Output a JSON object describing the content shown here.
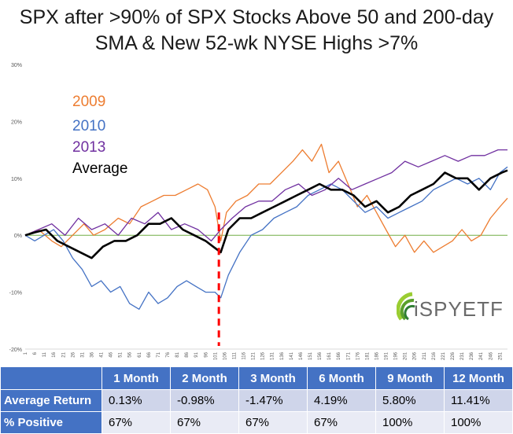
{
  "title": "SPX after >90% of SPX Stocks Above 50 and 200-day SMA & New 52-wk NYSE Highs >7%",
  "legend": [
    {
      "label": "2009",
      "color": "#ed7d31"
    },
    {
      "label": "2010",
      "color": "#4472c4"
    },
    {
      "label": "2013",
      "color": "#7030a0"
    },
    {
      "label": "Average",
      "color": "#000000"
    }
  ],
  "logo": {
    "text": "iSPYETF"
  },
  "chart_data": {
    "type": "line",
    "ylim": [
      -20,
      30
    ],
    "y_ticks": [
      -20,
      -10,
      0,
      10,
      20,
      30
    ],
    "y_tick_labels": [
      "-20%",
      "-10%",
      "0%",
      "10%",
      "20%",
      "30%"
    ],
    "x_range": [
      1,
      255
    ],
    "x_tick_labels": [
      "1",
      "6",
      "11",
      "16",
      "21",
      "26",
      "31",
      "36",
      "41",
      "46",
      "51",
      "56",
      "61",
      "66",
      "71",
      "76",
      "81",
      "86",
      "91",
      "96",
      "101",
      "106",
      "111",
      "116",
      "121",
      "126",
      "131",
      "136",
      "141",
      "146",
      "151",
      "156",
      "161",
      "166",
      "171",
      "176",
      "181",
      "186",
      "191",
      "196",
      "201",
      "206",
      "211",
      "216",
      "221",
      "226",
      "231",
      "236",
      "241",
      "246",
      "251"
    ],
    "signal_day": 103,
    "zero_line_color": "#70ad47",
    "signal_line_color": "#ff0000",
    "series": [
      {
        "name": "2009",
        "color": "#ed7d31",
        "width": 1.3,
        "x": [
          1,
          8,
          15,
          20,
          26,
          32,
          37,
          43,
          50,
          56,
          62,
          68,
          74,
          80,
          86,
          92,
          97,
          101,
          104,
          107,
          112,
          118,
          124,
          130,
          136,
          142,
          147,
          152,
          157,
          161,
          166,
          171,
          176,
          181,
          186,
          191,
          196,
          201,
          206,
          211,
          216,
          221,
          226,
          231,
          236,
          241,
          246,
          251,
          255
        ],
        "y": [
          0,
          1,
          -1,
          -2,
          0,
          2,
          0,
          1,
          3,
          2,
          5,
          6,
          7,
          7,
          8,
          9,
          8,
          5,
          -1,
          4,
          6,
          7,
          9,
          9,
          11,
          13,
          15,
          13,
          16,
          11,
          13,
          9,
          5,
          7,
          4,
          1,
          -2,
          0,
          -3,
          -1,
          -3,
          -2,
          -1,
          1,
          -1,
          0,
          3,
          5,
          6.5
        ]
      },
      {
        "name": "2010",
        "color": "#4472c4",
        "width": 1.3,
        "x": [
          1,
          6,
          11,
          16,
          21,
          26,
          31,
          36,
          41,
          46,
          51,
          56,
          61,
          66,
          71,
          76,
          81,
          86,
          91,
          96,
          101,
          104,
          108,
          114,
          120,
          126,
          132,
          138,
          144,
          150,
          156,
          162,
          168,
          174,
          180,
          186,
          192,
          198,
          204,
          210,
          216,
          222,
          228,
          234,
          240,
          246,
          251,
          255
        ],
        "y": [
          0,
          -1,
          0,
          1,
          -1,
          -4,
          -6,
          -9,
          -8,
          -10,
          -9,
          -12,
          -13,
          -10,
          -12,
          -11,
          -9,
          -8,
          -9,
          -10,
          -10,
          -11,
          -7,
          -3,
          0,
          1,
          3,
          4,
          5,
          7,
          8,
          9,
          8,
          6,
          4,
          5,
          3,
          4,
          5,
          6,
          8,
          9,
          10,
          9,
          10,
          8,
          11,
          12
        ]
      },
      {
        "name": "2013",
        "color": "#7030a0",
        "width": 1.3,
        "x": [
          1,
          8,
          15,
          22,
          29,
          36,
          43,
          50,
          57,
          64,
          71,
          78,
          85,
          92,
          99,
          104,
          110,
          117,
          124,
          131,
          138,
          145,
          152,
          159,
          166,
          173,
          180,
          187,
          194,
          201,
          208,
          215,
          222,
          229,
          236,
          243,
          250,
          255
        ],
        "y": [
          0,
          1,
          2,
          0,
          3,
          1,
          2,
          0,
          3,
          2,
          4,
          1,
          2,
          1,
          -1,
          1,
          3,
          5,
          6,
          6,
          8,
          9,
          7,
          8,
          10,
          8,
          9,
          10,
          11,
          13,
          12,
          13,
          14,
          13,
          14,
          14,
          15,
          15
        ]
      },
      {
        "name": "Average",
        "color": "#000000",
        "width": 2.6,
        "x": [
          1,
          6,
          12,
          18,
          24,
          30,
          36,
          42,
          48,
          54,
          60,
          66,
          72,
          78,
          84,
          90,
          96,
          100,
          104,
          108,
          114,
          120,
          126,
          132,
          138,
          144,
          150,
          156,
          162,
          168,
          174,
          180,
          186,
          192,
          198,
          204,
          210,
          216,
          222,
          228,
          234,
          240,
          246,
          252,
          255
        ],
        "y": [
          0,
          0.5,
          1,
          -1,
          -2,
          -3,
          -4,
          -2,
          -1,
          -1,
          0,
          2,
          2,
          3,
          1,
          0,
          -1,
          -2,
          -3,
          1,
          3,
          3,
          4,
          5,
          6,
          7,
          8,
          9,
          8,
          8,
          7,
          5,
          6,
          4,
          5,
          7,
          8,
          9,
          11,
          10,
          10,
          8,
          10,
          11,
          11.4
        ]
      }
    ]
  },
  "table": {
    "headers": [
      "",
      "1 Month",
      "2 Month",
      "3 Month",
      "6 Month",
      "9 Month",
      "12 Month"
    ],
    "rows": [
      {
        "label": "Average Return",
        "values": [
          "0.13%",
          "-0.98%",
          "-1.47%",
          "4.19%",
          "5.80%",
          "11.41%"
        ]
      },
      {
        "label": "% Positive",
        "values": [
          "67%",
          "67%",
          "67%",
          "67%",
          "100%",
          "100%"
        ]
      }
    ]
  }
}
